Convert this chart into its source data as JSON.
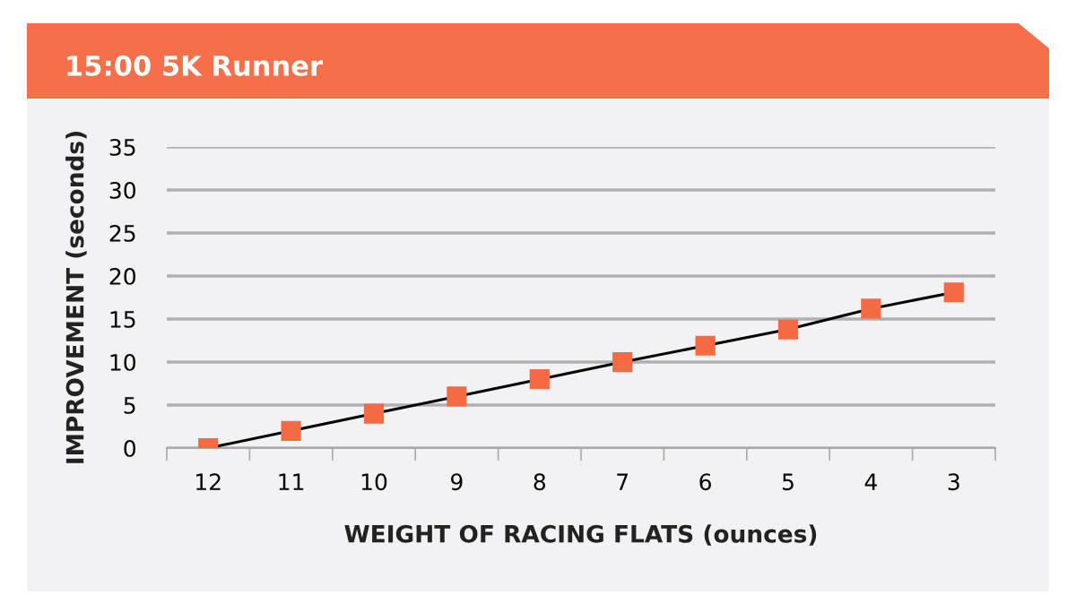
{
  "chart_data": {
    "type": "line",
    "title": "15:00 5K Runner",
    "xlabel": "WEIGHT OF RACING FLATS (ounces)",
    "ylabel": "IMPROVEMENT (seconds)",
    "categories": [
      "12",
      "11",
      "10",
      "9",
      "8",
      "7",
      "6",
      "5",
      "4",
      "3"
    ],
    "series": [
      {
        "color": "#f26b43",
        "values": [
          0,
          2,
          4,
          6,
          8,
          10,
          11.9,
          13.8,
          16.2,
          18.1
        ]
      }
    ],
    "ylim": [
      0,
      35
    ],
    "yticks": [
      0,
      5,
      10,
      15,
      20,
      25,
      30,
      35
    ],
    "grid": "y",
    "marker": "square",
    "line_style": "solid"
  }
}
